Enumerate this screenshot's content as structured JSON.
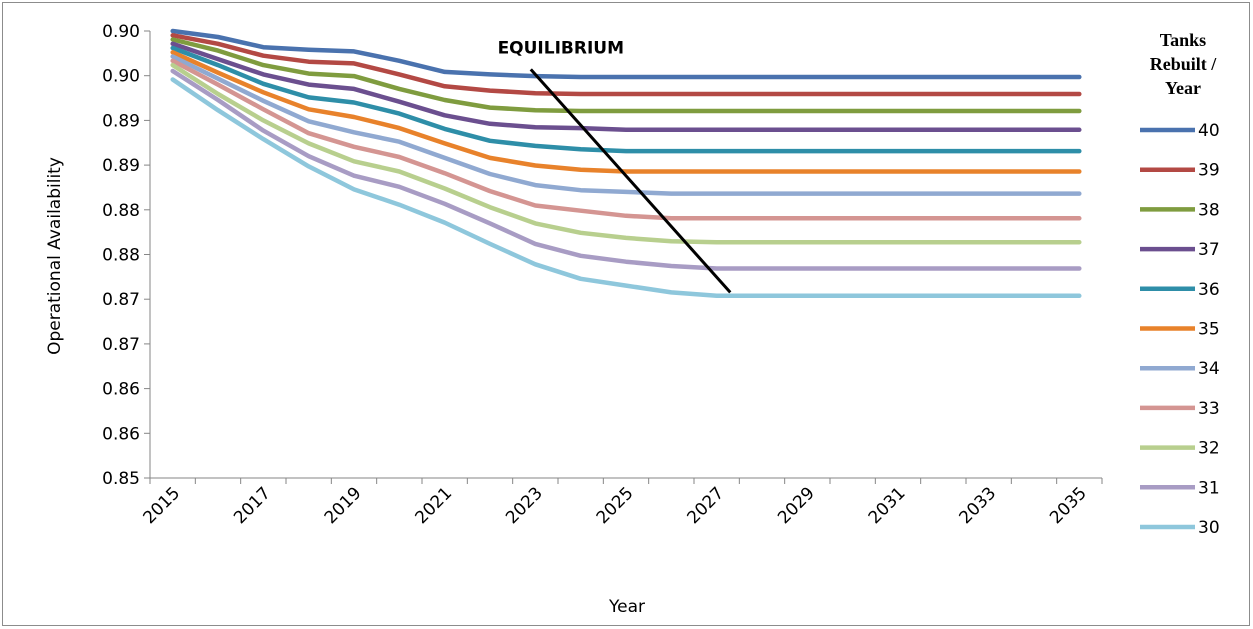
{
  "chart_data": {
    "type": "line",
    "title": "",
    "xlabel": "Year",
    "ylabel": "Operational Availability",
    "x": [
      2015,
      2016,
      2017,
      2018,
      2019,
      2020,
      2021,
      2022,
      2023,
      2024,
      2025,
      2026,
      2027,
      2028,
      2029,
      2030,
      2031,
      2032,
      2033,
      2034,
      2035
    ],
    "x_tick_labels": [
      "2015",
      "2017",
      "2019",
      "2021",
      "2023",
      "2025",
      "2027",
      "2029",
      "2031",
      "2033",
      "2035"
    ],
    "x_tick_values": [
      2015,
      2017,
      2019,
      2021,
      2023,
      2025,
      2027,
      2029,
      2031,
      2033,
      2035
    ],
    "y_tick_labels": [
      "0.85",
      "0.86",
      "0.86",
      "0.87",
      "0.87",
      "0.88",
      "0.88",
      "0.89",
      "0.89",
      "0.90",
      "0.90"
    ],
    "ylim": [
      0.85,
      0.9025
    ],
    "grid": false,
    "legend_title": "Tanks Rebuilt / Year",
    "legend_position": "right",
    "series": [
      {
        "name": "40",
        "color": "#4a72ae",
        "values": [
          0.9025,
          0.9018,
          0.9006,
          0.9003,
          0.9001,
          0.899,
          0.8977,
          0.8974,
          0.8972,
          0.8971,
          0.8971,
          0.8971,
          0.8971,
          0.8971,
          0.8971,
          0.8971,
          0.8971,
          0.8971,
          0.8971,
          0.8971,
          0.8971
        ]
      },
      {
        "name": "39",
        "color": "#b34944",
        "values": [
          0.902,
          0.901,
          0.8996,
          0.8989,
          0.8987,
          0.8974,
          0.896,
          0.8955,
          0.8952,
          0.8951,
          0.8951,
          0.8951,
          0.8951,
          0.8951,
          0.8951,
          0.8951,
          0.8951,
          0.8951,
          0.8951,
          0.8951,
          0.8951
        ]
      },
      {
        "name": "38",
        "color": "#7f9c3f",
        "values": [
          0.9015,
          0.9002,
          0.8985,
          0.8975,
          0.8972,
          0.8957,
          0.8944,
          0.8935,
          0.8932,
          0.8931,
          0.8931,
          0.8931,
          0.8931,
          0.8931,
          0.8931,
          0.8931,
          0.8931,
          0.8931,
          0.8931,
          0.8931,
          0.8931
        ]
      },
      {
        "name": "37",
        "color": "#6b4f8f",
        "values": [
          0.901,
          0.8992,
          0.8974,
          0.8962,
          0.8957,
          0.8942,
          0.8926,
          0.8916,
          0.8912,
          0.8911,
          0.8909,
          0.8909,
          0.8909,
          0.8909,
          0.8909,
          0.8909,
          0.8909,
          0.8909,
          0.8909,
          0.8909,
          0.8909
        ]
      },
      {
        "name": "36",
        "color": "#2e8ea8",
        "values": [
          0.9005,
          0.8985,
          0.8963,
          0.8947,
          0.8941,
          0.8928,
          0.891,
          0.8896,
          0.889,
          0.8886,
          0.8884,
          0.8884,
          0.8884,
          0.8884,
          0.8884,
          0.8884,
          0.8884,
          0.8884,
          0.8884,
          0.8884,
          0.8884
        ]
      },
      {
        "name": "35",
        "color": "#e8822b",
        "values": [
          0.9,
          0.8976,
          0.8953,
          0.8933,
          0.8924,
          0.8911,
          0.8893,
          0.8876,
          0.8867,
          0.8862,
          0.886,
          0.886,
          0.886,
          0.886,
          0.886,
          0.886,
          0.886,
          0.886,
          0.886,
          0.886,
          0.886
        ]
      },
      {
        "name": "34",
        "color": "#90a9d1",
        "values": [
          0.8995,
          0.8969,
          0.8943,
          0.8919,
          0.8906,
          0.8895,
          0.8876,
          0.8857,
          0.8844,
          0.8838,
          0.8836,
          0.8834,
          0.8834,
          0.8834,
          0.8834,
          0.8834,
          0.8834,
          0.8834,
          0.8834,
          0.8834,
          0.8834
        ]
      },
      {
        "name": "33",
        "color": "#d49592",
        "values": [
          0.899,
          0.8962,
          0.8933,
          0.8905,
          0.8889,
          0.8877,
          0.8858,
          0.8837,
          0.882,
          0.8814,
          0.8808,
          0.8805,
          0.8805,
          0.8805,
          0.8805,
          0.8805,
          0.8805,
          0.8805,
          0.8805,
          0.8805,
          0.8805
        ]
      },
      {
        "name": "32",
        "color": "#b8cf8e",
        "values": [
          0.8985,
          0.8951,
          0.892,
          0.8893,
          0.8872,
          0.886,
          0.884,
          0.8818,
          0.8799,
          0.8788,
          0.8782,
          0.8778,
          0.8777,
          0.8777,
          0.8777,
          0.8777,
          0.8777,
          0.8777,
          0.8777,
          0.8777,
          0.8777
        ]
      },
      {
        "name": "31",
        "color": "#a89cc4",
        "values": [
          0.8978,
          0.8944,
          0.8908,
          0.8878,
          0.8855,
          0.8842,
          0.8822,
          0.8799,
          0.8775,
          0.8761,
          0.8754,
          0.8749,
          0.8746,
          0.8746,
          0.8746,
          0.8746,
          0.8746,
          0.8746,
          0.8746,
          0.8746,
          0.8746
        ]
      },
      {
        "name": "30",
        "color": "#8ec7dc",
        "values": [
          0.8968,
          0.8932,
          0.8898,
          0.8866,
          0.8839,
          0.8821,
          0.88,
          0.8775,
          0.8751,
          0.8734,
          0.8726,
          0.8718,
          0.8714,
          0.8714,
          0.8714,
          0.8714,
          0.8714,
          0.8714,
          0.8714,
          0.8714,
          0.8714
        ]
      }
    ],
    "annotations": [
      {
        "text": "EQUILIBRIUM",
        "line_from": {
          "x": 2022.9,
          "y": 0.898
        },
        "line_to": {
          "x": 2027.3,
          "y": 0.8718
        }
      }
    ]
  }
}
